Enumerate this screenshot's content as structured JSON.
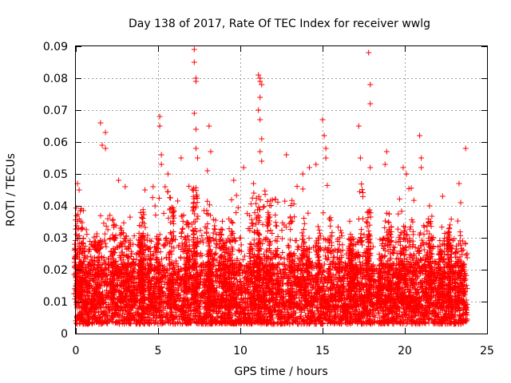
{
  "chart_data": {
    "type": "scatter",
    "title": "Day 138 of 2017, Rate Of TEC Index for receiver wwlg",
    "xlabel": "GPS time / hours",
    "ylabel": "ROTI / TECUs",
    "xlim": [
      0,
      25
    ],
    "ylim": [
      0,
      0.09
    ],
    "xticks": [
      0,
      5,
      10,
      15,
      20,
      25
    ],
    "yticks": [
      0,
      0.01,
      0.02,
      0.03,
      0.04,
      0.05,
      0.06,
      0.07,
      0.08,
      0.09
    ],
    "xtick_labels": [
      "0",
      "5",
      "10",
      "15",
      "20",
      "25"
    ],
    "ytick_labels": [
      "0",
      "0.01",
      "0.02",
      "0.03",
      "0.04",
      "0.05",
      "0.06",
      "0.07",
      "0.08",
      "0.09"
    ],
    "grid": true,
    "marker": "+",
    "marker_color": "#ff0000",
    "series": [
      {
        "name": "ROTI",
        "description": "dense cloud of ROTI samples from 0 to ~23.8 h, bulk between 0.003 and 0.03 TECU/min",
        "x_range": [
          0,
          23.8
        ],
        "bulk_range": [
          0.003,
          0.03
        ],
        "peaks": [
          {
            "x": 0.1,
            "y": 0.047
          },
          {
            "x": 0.2,
            "y": 0.045
          },
          {
            "x": 1.5,
            "y": 0.066
          },
          {
            "x": 1.6,
            "y": 0.059
          },
          {
            "x": 1.8,
            "y": 0.063
          },
          {
            "x": 1.8,
            "y": 0.058
          },
          {
            "x": 2.6,
            "y": 0.048
          },
          {
            "x": 3.0,
            "y": 0.046
          },
          {
            "x": 4.2,
            "y": 0.045
          },
          {
            "x": 4.7,
            "y": 0.046
          },
          {
            "x": 5.1,
            "y": 0.068
          },
          {
            "x": 5.1,
            "y": 0.065
          },
          {
            "x": 5.2,
            "y": 0.056
          },
          {
            "x": 5.2,
            "y": 0.053
          },
          {
            "x": 5.6,
            "y": 0.05
          },
          {
            "x": 6.4,
            "y": 0.055
          },
          {
            "x": 7.2,
            "y": 0.089
          },
          {
            "x": 7.2,
            "y": 0.085
          },
          {
            "x": 7.3,
            "y": 0.08
          },
          {
            "x": 7.3,
            "y": 0.079
          },
          {
            "x": 7.2,
            "y": 0.069
          },
          {
            "x": 7.3,
            "y": 0.064
          },
          {
            "x": 7.3,
            "y": 0.058
          },
          {
            "x": 7.4,
            "y": 0.055
          },
          {
            "x": 8.1,
            "y": 0.065
          },
          {
            "x": 8.2,
            "y": 0.057
          },
          {
            "x": 8.0,
            "y": 0.051
          },
          {
            "x": 9.6,
            "y": 0.048
          },
          {
            "x": 10.2,
            "y": 0.052
          },
          {
            "x": 10.8,
            "y": 0.047
          },
          {
            "x": 11.1,
            "y": 0.081
          },
          {
            "x": 11.2,
            "y": 0.08
          },
          {
            "x": 11.2,
            "y": 0.079
          },
          {
            "x": 11.3,
            "y": 0.078
          },
          {
            "x": 11.2,
            "y": 0.074
          },
          {
            "x": 11.1,
            "y": 0.07
          },
          {
            "x": 11.2,
            "y": 0.067
          },
          {
            "x": 11.3,
            "y": 0.061
          },
          {
            "x": 11.2,
            "y": 0.057
          },
          {
            "x": 11.3,
            "y": 0.054
          },
          {
            "x": 12.8,
            "y": 0.056
          },
          {
            "x": 13.8,
            "y": 0.05
          },
          {
            "x": 14.2,
            "y": 0.052
          },
          {
            "x": 15.0,
            "y": 0.067
          },
          {
            "x": 15.1,
            "y": 0.062
          },
          {
            "x": 15.2,
            "y": 0.058
          },
          {
            "x": 15.2,
            "y": 0.055
          },
          {
            "x": 14.6,
            "y": 0.053
          },
          {
            "x": 17.2,
            "y": 0.065
          },
          {
            "x": 17.3,
            "y": 0.055
          },
          {
            "x": 17.8,
            "y": 0.088
          },
          {
            "x": 17.9,
            "y": 0.078
          },
          {
            "x": 17.9,
            "y": 0.072
          },
          {
            "x": 17.9,
            "y": 0.052
          },
          {
            "x": 18.9,
            "y": 0.057
          },
          {
            "x": 18.8,
            "y": 0.053
          },
          {
            "x": 19.9,
            "y": 0.052
          },
          {
            "x": 20.1,
            "y": 0.05
          },
          {
            "x": 20.9,
            "y": 0.062
          },
          {
            "x": 21.0,
            "y": 0.055
          },
          {
            "x": 21.0,
            "y": 0.052
          },
          {
            "x": 21.5,
            "y": 0.04
          },
          {
            "x": 22.3,
            "y": 0.043
          },
          {
            "x": 23.3,
            "y": 0.047
          },
          {
            "x": 23.4,
            "y": 0.041
          },
          {
            "x": 23.7,
            "y": 0.058
          }
        ],
        "activity_bands": [
          {
            "x": [
              0.0,
              0.4
            ],
            "max": 0.045
          },
          {
            "x": [
              1.0,
              2.6
            ],
            "max": 0.04
          },
          {
            "x": [
              2.6,
              4.0
            ],
            "max": 0.043
          },
          {
            "x": [
              4.0,
              5.4
            ],
            "max": 0.044
          },
          {
            "x": [
              5.4,
              6.8
            ],
            "max": 0.047
          },
          {
            "x": [
              6.8,
              7.6
            ],
            "max": 0.05
          },
          {
            "x": [
              7.6,
              9.0
            ],
            "max": 0.042
          },
          {
            "x": [
              9.0,
              10.8
            ],
            "max": 0.046
          },
          {
            "x": [
              10.8,
              11.6
            ],
            "max": 0.048
          },
          {
            "x": [
              11.6,
              13.4
            ],
            "max": 0.045
          },
          {
            "x": [
              13.4,
              15.6
            ],
            "max": 0.048
          },
          {
            "x": [
              15.6,
              16.8
            ],
            "max": 0.043
          },
          {
            "x": [
              16.8,
              18.0
            ],
            "max": 0.048
          },
          {
            "x": [
              18.0,
              19.6
            ],
            "max": 0.038
          },
          {
            "x": [
              19.6,
              21.2
            ],
            "max": 0.046
          },
          {
            "x": [
              21.2,
              22.6
            ],
            "max": 0.042
          },
          {
            "x": [
              22.6,
              23.8
            ],
            "max": 0.036
          }
        ]
      }
    ]
  }
}
